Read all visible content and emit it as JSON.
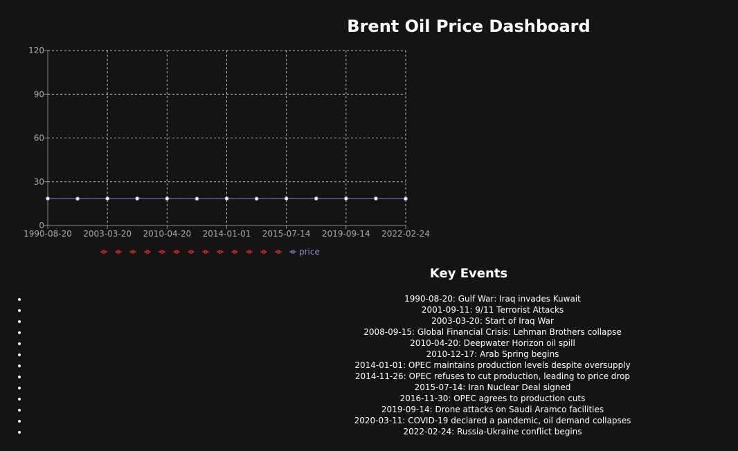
{
  "title": "Brent Oil Price Dashboard",
  "events_heading": "Key Events",
  "events": [
    "1990-08-20: Gulf War: Iraq invades Kuwait",
    "2001-09-11: 9/11 Terrorist Attacks",
    "2003-03-20: Start of Iraq War",
    "2008-09-15: Global Financial Crisis: Lehman Brothers collapse",
    "2010-04-20: Deepwater Horizon oil spill",
    "2010-12-17: Arab Spring begins",
    "2014-01-01: OPEC maintains production levels despite oversupply",
    "2014-11-26: OPEC refuses to cut production, leading to price drop",
    "2015-07-14: Iran Nuclear Deal signed",
    "2016-11-30: OPEC agrees to production cuts",
    "2019-09-14: Drone attacks on Saudi Aramco facilities",
    "2020-03-11: COVID-19 declared a pandemic, oil demand collapses",
    "2022-02-24: Russia-Ukraine conflict begins"
  ],
  "chart_data": {
    "type": "line",
    "title": "",
    "xlabel": "",
    "ylabel": "",
    "ylim": [
      0,
      120
    ],
    "yticks": [
      0,
      30,
      60,
      90,
      120
    ],
    "grid": true,
    "legend": "bottom",
    "x": [
      "1990-08-20",
      "2001-09-11",
      "2003-03-20",
      "2008-09-15",
      "2010-04-20",
      "2010-12-17",
      "2014-01-01",
      "2014-11-26",
      "2015-07-14",
      "2016-11-30",
      "2019-09-14",
      "2020-03-11",
      "2022-02-24"
    ],
    "xtick_labels": [
      "1990-08-20",
      "2003-03-20",
      "2010-04-20",
      "2014-01-01",
      "2015-07-14",
      "2019-09-14",
      "2022-02-24"
    ],
    "series": [
      {
        "name": "price",
        "color": "#8884d8",
        "values": [
          18.5,
          18.4,
          18.5,
          18.5,
          18.5,
          18.4,
          18.5,
          18.4,
          18.5,
          18.5,
          18.5,
          18.5,
          18.4
        ]
      }
    ],
    "legend_marker_color": "#ff2a2a",
    "legend_marker_count": 13
  }
}
